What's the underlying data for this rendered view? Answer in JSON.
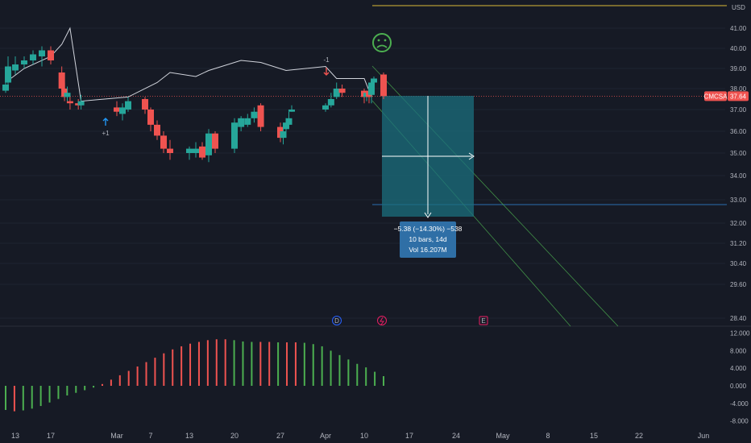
{
  "currency": "USD",
  "colors": {
    "background": "#161a25",
    "up": "#26a69a",
    "down": "#ef5350",
    "osc_up": "#4caf50",
    "osc_down": "#ef5350",
    "measure_fill": "#1b6f7e",
    "tooltip_bg": "#2f6fa6",
    "gold_line": "#b39b34",
    "target_line": "#2a6fb0"
  },
  "price_axis": {
    "labels": [
      "41.00",
      "40.00",
      "39.00",
      "38.00",
      "37.00",
      "36.00",
      "35.00",
      "34.00",
      "33.00",
      "32.00",
      "31.20",
      "30.40",
      "29.60",
      "28.40"
    ]
  },
  "time_axis": {
    "labels": [
      "13",
      "17",
      "Mar",
      "7",
      "13",
      "20",
      "27",
      "Apr",
      "10",
      "17",
      "24",
      "May",
      "8",
      "15",
      "22",
      "Jun"
    ]
  },
  "symbol_tag": {
    "symbol": "CMCSA",
    "price": "37.64"
  },
  "osc_axis": {
    "labels": [
      "12.000",
      "8.000",
      "4.000",
      "0.000",
      "-4.000",
      "-8.000"
    ]
  },
  "measure": {
    "line1": "−5.38 (−14.30%) −538",
    "line2": "10 bars, 14d",
    "line3": "Vol 16.207M"
  },
  "markers": {
    "buy_label": "+1",
    "sell_label": "-1",
    "earnings_letters": [
      "D",
      "E"
    ]
  },
  "sentiment_icon": "sad-face-icon",
  "chart_data": {
    "type": "candlestick",
    "price_scale": "non-linear",
    "candles": [
      {
        "x": "Feb 9",
        "o": 37.9,
        "h": 38.4,
        "l": 37.8,
        "c": 38.2
      },
      {
        "x": "Feb 10",
        "o": 38.3,
        "h": 39.6,
        "l": 38.1,
        "c": 39.1
      },
      {
        "x": "Feb 13",
        "o": 38.9,
        "h": 39.6,
        "l": 38.7,
        "c": 39.2
      },
      {
        "x": "Feb 14",
        "o": 39.2,
        "h": 39.6,
        "l": 39.0,
        "c": 39.4
      },
      {
        "x": "Feb 15",
        "o": 39.4,
        "h": 39.9,
        "l": 39.2,
        "c": 39.7
      },
      {
        "x": "Feb 16",
        "o": 39.6,
        "h": 40.1,
        "l": 39.1,
        "c": 39.9
      },
      {
        "x": "Feb 17",
        "o": 39.9,
        "h": 40.1,
        "l": 39.2,
        "c": 39.4
      },
      {
        "x": "Feb 21",
        "o": 38.8,
        "h": 39.1,
        "l": 37.9,
        "c": 38.0
      },
      {
        "x": "Feb 22",
        "o": 38.0,
        "h": 38.3,
        "l": 37.4,
        "c": 37.6
      },
      {
        "x": "Feb 23",
        "o": 37.6,
        "h": 38.1,
        "l": 37.4,
        "c": 37.8
      },
      {
        "x": "Feb 24",
        "o": 37.4,
        "h": 37.6,
        "l": 37.0,
        "c": 37.3
      },
      {
        "x": "Feb 27",
        "o": 37.3,
        "h": 37.5,
        "l": 37.0,
        "c": 37.2
      },
      {
        "x": "Feb 28",
        "o": 37.2,
        "h": 37.7,
        "l": 37.0,
        "c": 37.4
      },
      {
        "x": "Mar 1",
        "o": 37.1,
        "h": 37.4,
        "l": 36.7,
        "c": 36.9
      },
      {
        "x": "Mar 2",
        "o": 36.8,
        "h": 37.3,
        "l": 36.5,
        "c": 37.1
      },
      {
        "x": "Mar 3",
        "o": 37.0,
        "h": 37.6,
        "l": 36.9,
        "c": 37.4
      },
      {
        "x": "Mar 6",
        "o": 37.5,
        "h": 37.6,
        "l": 36.8,
        "c": 37.0
      },
      {
        "x": "Mar 7",
        "o": 37.0,
        "h": 37.1,
        "l": 36.0,
        "c": 36.3
      },
      {
        "x": "Mar 8",
        "o": 36.3,
        "h": 36.5,
        "l": 35.6,
        "c": 35.8
      },
      {
        "x": "Mar 9",
        "o": 35.8,
        "h": 36.0,
        "l": 35.0,
        "c": 35.2
      },
      {
        "x": "Mar 10",
        "o": 35.2,
        "h": 35.6,
        "l": 34.7,
        "c": 35.0
      },
      {
        "x": "Mar 13",
        "o": 35.0,
        "h": 35.3,
        "l": 34.7,
        "c": 35.2
      },
      {
        "x": "Mar 14",
        "o": 35.0,
        "h": 35.5,
        "l": 34.8,
        "c": 35.2
      },
      {
        "x": "Mar 15",
        "o": 35.3,
        "h": 35.5,
        "l": 34.7,
        "c": 34.8
      },
      {
        "x": "Mar 16",
        "o": 34.9,
        "h": 36.1,
        "l": 34.6,
        "c": 35.9
      },
      {
        "x": "Mar 17",
        "o": 35.9,
        "h": 36.0,
        "l": 35.0,
        "c": 35.2
      },
      {
        "x": "Mar 20",
        "o": 35.2,
        "h": 36.6,
        "l": 35.0,
        "c": 36.4
      },
      {
        "x": "Mar 21",
        "o": 36.2,
        "h": 36.7,
        "l": 36.0,
        "c": 36.6
      },
      {
        "x": "Mar 22",
        "o": 36.3,
        "h": 36.8,
        "l": 36.2,
        "c": 36.6
      },
      {
        "x": "Mar 23",
        "o": 36.6,
        "h": 37.1,
        "l": 36.4,
        "c": 36.9
      },
      {
        "x": "Mar 24",
        "o": 37.2,
        "h": 37.3,
        "l": 36.0,
        "c": 36.2
      },
      {
        "x": "Mar 27",
        "o": 36.2,
        "h": 36.4,
        "l": 35.5,
        "c": 35.7
      },
      {
        "x": "Mar 28",
        "o": 35.7,
        "h": 36.2,
        "l": 35.4,
        "c": 36.0
      },
      {
        "x": "Mar 29",
        "o": 36.1,
        "h": 36.6,
        "l": 36.0,
        "c": 36.4
      },
      {
        "x": "Mar 30",
        "o": 36.3,
        "h": 36.9,
        "l": 36.2,
        "c": 36.6
      },
      {
        "x": "Mar 31",
        "o": 36.9,
        "h": 37.2,
        "l": 36.9,
        "c": 37.0
      },
      {
        "x": "Apr 3",
        "o": 37.0,
        "h": 37.3,
        "l": 36.9,
        "c": 37.2
      },
      {
        "x": "Apr 4",
        "o": 37.2,
        "h": 37.8,
        "l": 37.1,
        "c": 37.5
      },
      {
        "x": "Apr 5",
        "o": 37.6,
        "h": 38.3,
        "l": 37.5,
        "c": 38.0
      },
      {
        "x": "Apr 6",
        "o": 38.0,
        "h": 38.2,
        "l": 37.6,
        "c": 37.8
      },
      {
        "x": "Apr 10",
        "o": 37.9,
        "h": 38.0,
        "l": 37.3,
        "c": 37.6
      },
      {
        "x": "Apr 11",
        "o": 37.6,
        "h": 37.9,
        "l": 37.4,
        "c": 37.8
      },
      {
        "x": "Apr 12",
        "o": 37.9,
        "h": 38.0,
        "l": 37.3,
        "c": 37.6
      },
      {
        "x": "Apr 13",
        "o": 37.7,
        "h": 38.4,
        "l": 37.3,
        "c": 38.3
      },
      {
        "x": "Apr 14",
        "o": 38.3,
        "h": 38.6,
        "l": 38.1,
        "c": 38.5
      },
      {
        "x": "Apr 17",
        "o": 38.7,
        "h": 38.8,
        "l": 37.5,
        "c": 37.64
      }
    ],
    "overlay_line": [
      {
        "x": "Feb 10",
        "y": 38.4
      },
      {
        "x": "Feb 14",
        "y": 39.0
      },
      {
        "x": "Feb 17",
        "y": 39.6
      },
      {
        "x": "Feb 21",
        "y": 40.2
      },
      {
        "x": "Feb 24",
        "y": 41.0
      },
      {
        "x": "Feb 28",
        "y": 37.4
      },
      {
        "x": "Mar 3",
        "y": 37.6
      },
      {
        "x": "Mar 8",
        "y": 38.3
      },
      {
        "x": "Mar 10",
        "y": 38.8
      },
      {
        "x": "Mar 14",
        "y": 38.6
      },
      {
        "x": "Mar 16",
        "y": 38.9
      },
      {
        "x": "Mar 21",
        "y": 39.4
      },
      {
        "x": "Mar 24",
        "y": 39.3
      },
      {
        "x": "Mar 29",
        "y": 38.9
      },
      {
        "x": "Apr 3",
        "y": 39.1
      },
      {
        "x": "Apr 5",
        "y": 38.5
      },
      {
        "x": "Apr 10",
        "y": 38.5
      },
      {
        "x": "Apr 12",
        "y": 37.9
      },
      {
        "x": "Apr 14",
        "y": 38.3
      }
    ],
    "oscillator": {
      "type": "histogram",
      "values": [
        -5.5,
        -5.8,
        -5.6,
        -5.2,
        -4.6,
        -3.8,
        -3.0,
        -2.2,
        -1.6,
        -1.0,
        -0.4,
        0.4,
        1.4,
        2.4,
        3.4,
        4.4,
        5.4,
        6.4,
        7.4,
        8.3,
        9.0,
        9.6,
        10.0,
        10.4,
        10.6,
        10.6,
        10.4,
        10.1,
        10.0,
        10.0,
        10.0,
        9.9,
        9.9,
        9.9,
        9.8,
        9.5,
        9.0,
        8.0,
        7.0,
        6.0,
        5.0,
        4.2,
        3.2,
        2.2
      ],
      "ylim": [
        -9,
        13
      ]
    }
  }
}
